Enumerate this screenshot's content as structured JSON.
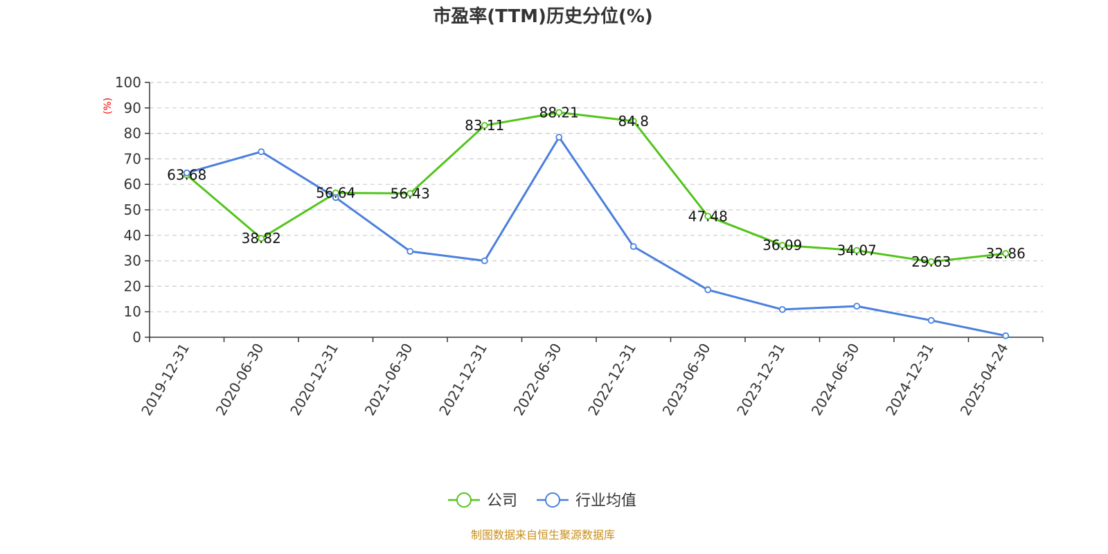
{
  "chart_data": {
    "type": "line",
    "title": "市盈率(TTM)历史分位(%)",
    "ylabel": "(%)",
    "xlabel": "",
    "ylim": [
      0,
      100
    ],
    "yticks": [
      0,
      10,
      20,
      30,
      40,
      50,
      60,
      70,
      80,
      90,
      100
    ],
    "grid": true,
    "legend_position": "bottom-center",
    "categories": [
      "2019-12-31",
      "2020-06-30",
      "2020-12-31",
      "2021-06-30",
      "2021-12-31",
      "2022-06-30",
      "2022-12-31",
      "2023-06-30",
      "2023-12-31",
      "2024-06-30",
      "2024-12-31",
      "2025-04-24"
    ],
    "series": [
      {
        "name": "公司",
        "color": "#52c41a",
        "values": [
          63.68,
          38.82,
          56.64,
          56.43,
          83.11,
          88.21,
          84.8,
          47.48,
          36.09,
          34.07,
          29.63,
          32.86
        ],
        "show_labels": true
      },
      {
        "name": "行业均值",
        "color": "#4a7fdc",
        "values": [
          64.5,
          72.8,
          54.8,
          33.7,
          30.0,
          78.5,
          35.6,
          18.6,
          10.9,
          12.2,
          6.6,
          0.6
        ],
        "show_labels": false
      }
    ]
  },
  "footer": {
    "source": "制图数据来自恒生聚源数据库"
  }
}
